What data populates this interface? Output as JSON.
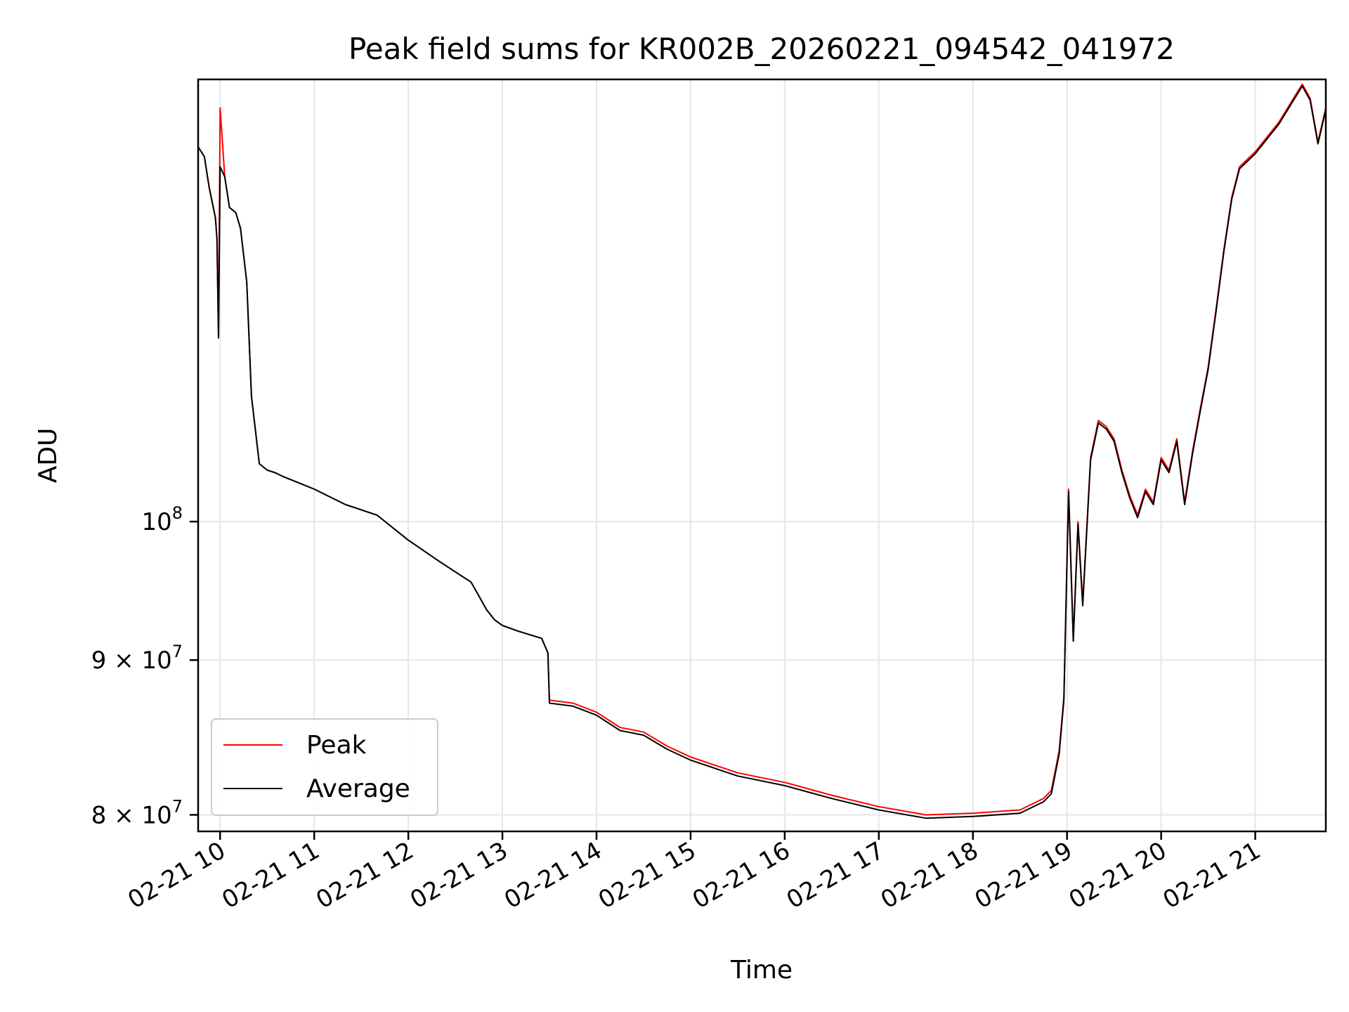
{
  "chart_data": {
    "type": "line",
    "title": "Peak field sums for KR002B_20260221_094542_041972",
    "xlabel": "Time",
    "ylabel": "ADU",
    "yscale": "log",
    "grid": true,
    "legend_position": "lower-left",
    "xlim": [
      "2026-02-21 09:46",
      "2026-02-21 21:45"
    ],
    "ylim": [
      79000000,
      140000000
    ],
    "x_ticks": [
      {
        "value": "2026-02-21 10:00",
        "label": "02-21 10"
      },
      {
        "value": "2026-02-21 11:00",
        "label": "02-21 11"
      },
      {
        "value": "2026-02-21 12:00",
        "label": "02-21 12"
      },
      {
        "value": "2026-02-21 13:00",
        "label": "02-21 13"
      },
      {
        "value": "2026-02-21 14:00",
        "label": "02-21 14"
      },
      {
        "value": "2026-02-21 15:00",
        "label": "02-21 15"
      },
      {
        "value": "2026-02-21 16:00",
        "label": "02-21 16"
      },
      {
        "value": "2026-02-21 17:00",
        "label": "02-21 17"
      },
      {
        "value": "2026-02-21 18:00",
        "label": "02-21 18"
      },
      {
        "value": "2026-02-21 19:00",
        "label": "02-21 19"
      },
      {
        "value": "2026-02-21 20:00",
        "label": "02-21 20"
      },
      {
        "value": "2026-02-21 21:00",
        "label": "02-21 21"
      }
    ],
    "y_ticks": [
      {
        "value": 80000000,
        "base": "8 × 10",
        "exp": "7"
      },
      {
        "value": 90000000,
        "base": "9 × 10",
        "exp": "7"
      },
      {
        "value": 100000000,
        "base": "10",
        "exp": "8"
      }
    ],
    "series": [
      {
        "name": "Peak",
        "color": "#ff0000",
        "x": [
          "2026-02-21 09:46",
          "2026-02-21 09:50",
          "2026-02-21 09:53",
          "2026-02-21 09:57",
          "2026-02-21 09:58",
          "2026-02-21 09:59",
          "2026-02-21 10:00",
          "2026-02-21 10:03",
          "2026-02-21 10:06",
          "2026-02-21 10:10",
          "2026-02-21 10:13",
          "2026-02-21 10:17",
          "2026-02-21 10:20",
          "2026-02-21 10:25",
          "2026-02-21 10:30",
          "2026-02-21 10:35",
          "2026-02-21 10:40",
          "2026-02-21 10:50",
          "2026-02-21 11:00",
          "2026-02-21 11:20",
          "2026-02-21 11:40",
          "2026-02-21 12:00",
          "2026-02-21 12:20",
          "2026-02-21 12:40",
          "2026-02-21 12:45",
          "2026-02-21 12:50",
          "2026-02-21 12:55",
          "2026-02-21 13:00",
          "2026-02-21 13:10",
          "2026-02-21 13:25",
          "2026-02-21 13:29",
          "2026-02-21 13:30",
          "2026-02-21 13:45",
          "2026-02-21 14:00",
          "2026-02-21 14:15",
          "2026-02-21 14:30",
          "2026-02-21 14:45",
          "2026-02-21 15:00",
          "2026-02-21 15:30",
          "2026-02-21 16:00",
          "2026-02-21 16:30",
          "2026-02-21 17:00",
          "2026-02-21 17:30",
          "2026-02-21 18:00",
          "2026-02-21 18:30",
          "2026-02-21 18:45",
          "2026-02-21 18:50",
          "2026-02-21 18:55",
          "2026-02-21 18:58",
          "2026-02-21 19:01",
          "2026-02-21 19:04",
          "2026-02-21 19:07",
          "2026-02-21 19:10",
          "2026-02-21 19:15",
          "2026-02-21 19:20",
          "2026-02-21 19:25",
          "2026-02-21 19:30",
          "2026-02-21 19:35",
          "2026-02-21 19:40",
          "2026-02-21 19:45",
          "2026-02-21 19:50",
          "2026-02-21 19:55",
          "2026-02-21 20:00",
          "2026-02-21 20:05",
          "2026-02-21 20:10",
          "2026-02-21 20:15",
          "2026-02-21 20:20",
          "2026-02-21 20:25",
          "2026-02-21 20:30",
          "2026-02-21 20:35",
          "2026-02-21 20:40",
          "2026-02-21 20:45",
          "2026-02-21 20:50",
          "2026-02-21 21:00",
          "2026-02-21 21:15",
          "2026-02-21 21:30",
          "2026-02-21 21:35",
          "2026-02-21 21:40",
          "2026-02-21 21:45"
        ],
        "values": [
          133000000,
          132000000,
          129000000,
          126000000,
          124000000,
          115000000,
          137000000,
          130000000,
          127000000,
          126500000,
          125000000,
          120000000,
          110000000,
          104500000,
          104000000,
          103800000,
          103500000,
          103000000,
          102500000,
          101300000,
          100500000,
          98600000,
          97000000,
          95500000,
          94500000,
          93500000,
          92800000,
          92400000,
          92000000,
          91500000,
          90500000,
          87300000,
          87100000,
          86500000,
          85500000,
          85200000,
          84300000,
          83600000,
          82600000,
          82000000,
          81200000,
          80500000,
          80000000,
          80100000,
          80300000,
          81000000,
          81500000,
          84000000,
          87500000,
          102500000,
          91500000,
          100000000,
          94000000,
          105000000,
          108000000,
          107500000,
          106500000,
          104000000,
          102000000,
          100500000,
          102500000,
          101500000,
          105000000,
          104000000,
          106500000,
          101500000,
          105500000,
          109000000,
          112500000,
          117500000,
          123000000,
          128000000,
          131000000,
          132500000,
          135500000,
          139500000,
          138000000,
          133500000,
          137000000
        ]
      },
      {
        "name": "Average",
        "color": "#000000",
        "x": [
          "2026-02-21 09:46",
          "2026-02-21 09:50",
          "2026-02-21 09:53",
          "2026-02-21 09:57",
          "2026-02-21 09:58",
          "2026-02-21 09:59",
          "2026-02-21 10:00",
          "2026-02-21 10:03",
          "2026-02-21 10:06",
          "2026-02-21 10:10",
          "2026-02-21 10:13",
          "2026-02-21 10:17",
          "2026-02-21 10:20",
          "2026-02-21 10:25",
          "2026-02-21 10:30",
          "2026-02-21 10:35",
          "2026-02-21 10:40",
          "2026-02-21 10:50",
          "2026-02-21 11:00",
          "2026-02-21 11:20",
          "2026-02-21 11:40",
          "2026-02-21 12:00",
          "2026-02-21 12:20",
          "2026-02-21 12:40",
          "2026-02-21 12:45",
          "2026-02-21 12:50",
          "2026-02-21 12:55",
          "2026-02-21 13:00",
          "2026-02-21 13:10",
          "2026-02-21 13:25",
          "2026-02-21 13:29",
          "2026-02-21 13:30",
          "2026-02-21 13:45",
          "2026-02-21 14:00",
          "2026-02-21 14:15",
          "2026-02-21 14:30",
          "2026-02-21 14:45",
          "2026-02-21 15:00",
          "2026-02-21 15:30",
          "2026-02-21 16:00",
          "2026-02-21 16:30",
          "2026-02-21 17:00",
          "2026-02-21 17:30",
          "2026-02-21 18:00",
          "2026-02-21 18:30",
          "2026-02-21 18:45",
          "2026-02-21 18:50",
          "2026-02-21 18:55",
          "2026-02-21 18:58",
          "2026-02-21 19:01",
          "2026-02-21 19:04",
          "2026-02-21 19:07",
          "2026-02-21 19:10",
          "2026-02-21 19:15",
          "2026-02-21 19:20",
          "2026-02-21 19:25",
          "2026-02-21 19:30",
          "2026-02-21 19:35",
          "2026-02-21 19:40",
          "2026-02-21 19:45",
          "2026-02-21 19:50",
          "2026-02-21 19:55",
          "2026-02-21 20:00",
          "2026-02-21 20:05",
          "2026-02-21 20:10",
          "2026-02-21 20:15",
          "2026-02-21 20:20",
          "2026-02-21 20:25",
          "2026-02-21 20:30",
          "2026-02-21 20:35",
          "2026-02-21 20:40",
          "2026-02-21 20:45",
          "2026-02-21 20:50",
          "2026-02-21 21:00",
          "2026-02-21 21:15",
          "2026-02-21 21:30",
          "2026-02-21 21:35",
          "2026-02-21 21:40",
          "2026-02-21 21:45"
        ],
        "values": [
          133000000,
          132000000,
          129000000,
          126000000,
          124000000,
          115000000,
          131000000,
          130000000,
          127000000,
          126500000,
          125000000,
          120000000,
          110000000,
          104500000,
          104000000,
          103800000,
          103500000,
          103000000,
          102500000,
          101300000,
          100500000,
          98600000,
          97000000,
          95500000,
          94500000,
          93500000,
          92800000,
          92400000,
          92000000,
          91500000,
          90500000,
          87100000,
          86900000,
          86300000,
          85300000,
          85000000,
          84100000,
          83400000,
          82400000,
          81800000,
          81000000,
          80300000,
          79800000,
          79900000,
          80100000,
          80800000,
          81300000,
          83800000,
          87300000,
          102300000,
          91300000,
          99800000,
          93800000,
          104800000,
          107800000,
          107300000,
          106300000,
          103800000,
          101800000,
          100300000,
          102300000,
          101300000,
          104800000,
          103800000,
          106300000,
          101300000,
          105300000,
          108800000,
          112300000,
          117300000,
          122800000,
          127800000,
          130800000,
          132300000,
          135300000,
          139300000,
          137800000,
          133300000,
          136800000
        ]
      }
    ]
  }
}
